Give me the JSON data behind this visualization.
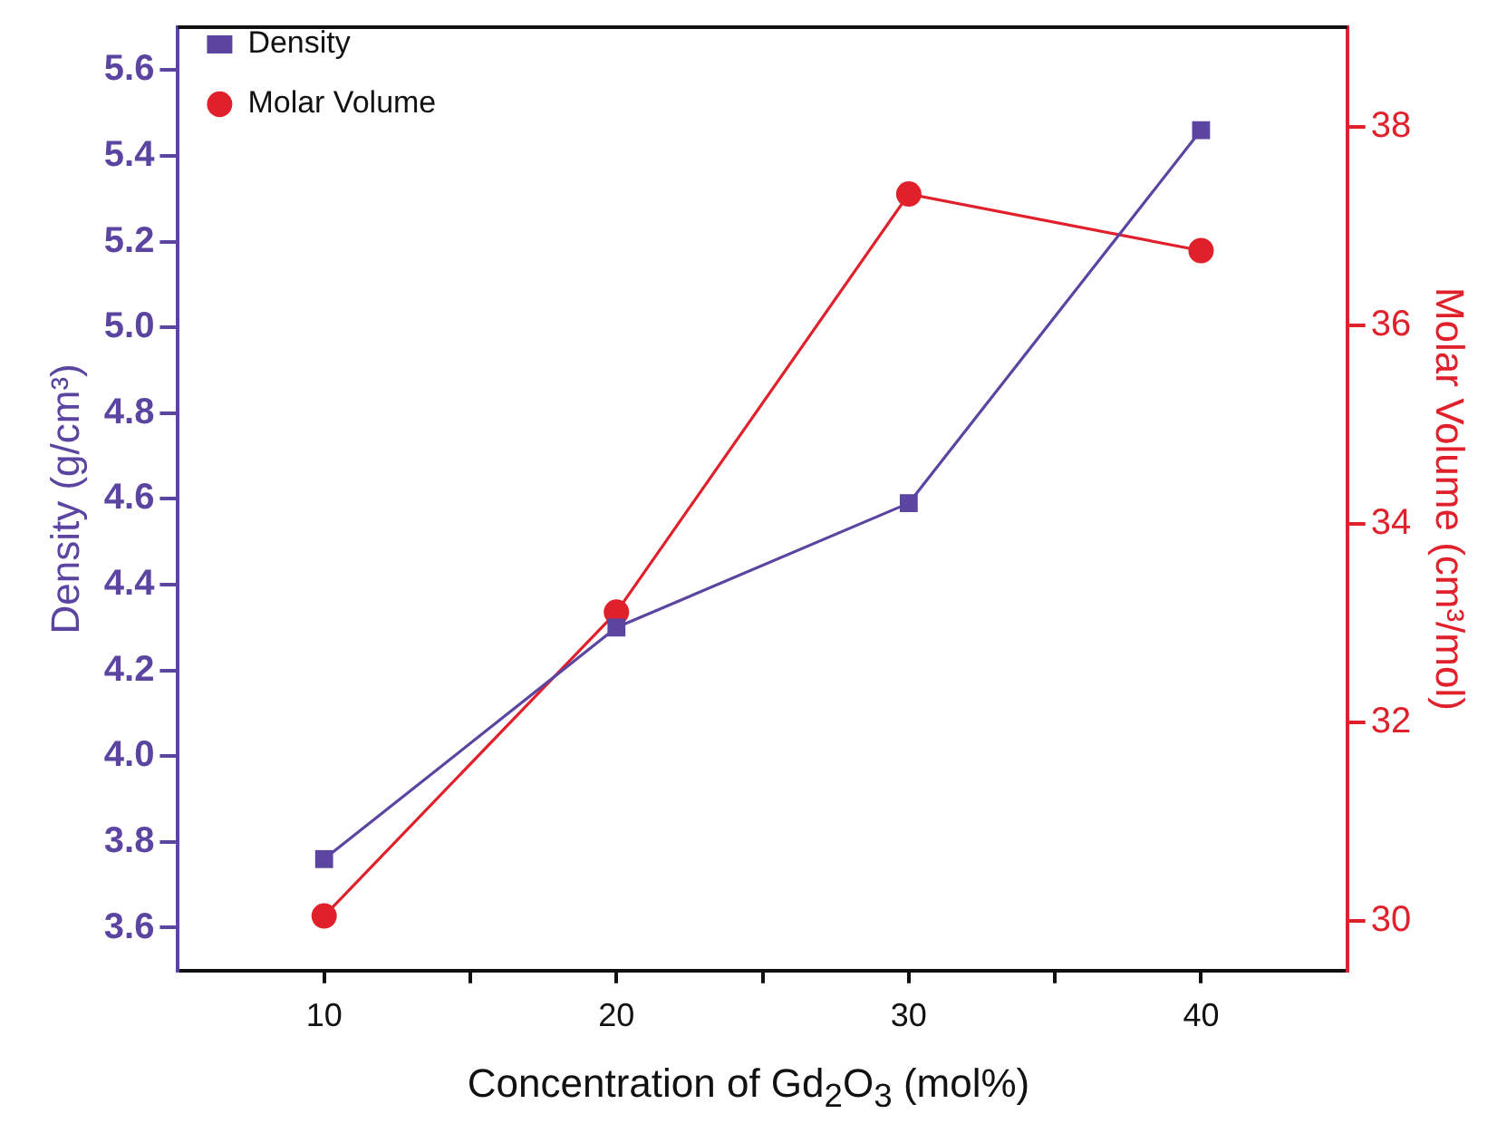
{
  "chart_data": {
    "type": "line",
    "xlabel": "Concentration of Gd$_{2}$O$_{3}$ (mol%)",
    "ylabel": "Density (g/cm³)",
    "y2label": "Molar Volume (cm³/mol)",
    "x": [
      10,
      20,
      30,
      40
    ],
    "xlim": [
      5,
      45
    ],
    "xticks": [
      10,
      {
        "value": 15,
        "label": null
      },
      20,
      {
        "value": 25,
        "label": null
      },
      30,
      {
        "value": 35,
        "label": null
      },
      40
    ],
    "ylim": [
      3.5,
      5.7
    ],
    "yticks": [
      3.6,
      3.8,
      {
        "value": 4.0,
        "label": "4.0"
      },
      4.2,
      4.4,
      4.6,
      4.8,
      {
        "value": 5.0,
        "label": "5.0"
      },
      5.2,
      5.4,
      5.6
    ],
    "y2lim": [
      29.5,
      39
    ],
    "y2ticks": [
      30,
      32,
      34,
      36,
      38
    ],
    "grid": false,
    "legend": "top left",
    "series": [
      {
        "name": "Density",
        "color": "#5b45a0",
        "marker": "square",
        "values": [
          3.76,
          4.3,
          4.59,
          5.46
        ]
      },
      {
        "name": "Molar Volume",
        "color": "#e0202a",
        "marker": "circle",
        "axis": "y2",
        "values": [
          30.05,
          33.11,
          37.32,
          36.75
        ]
      }
    ]
  }
}
